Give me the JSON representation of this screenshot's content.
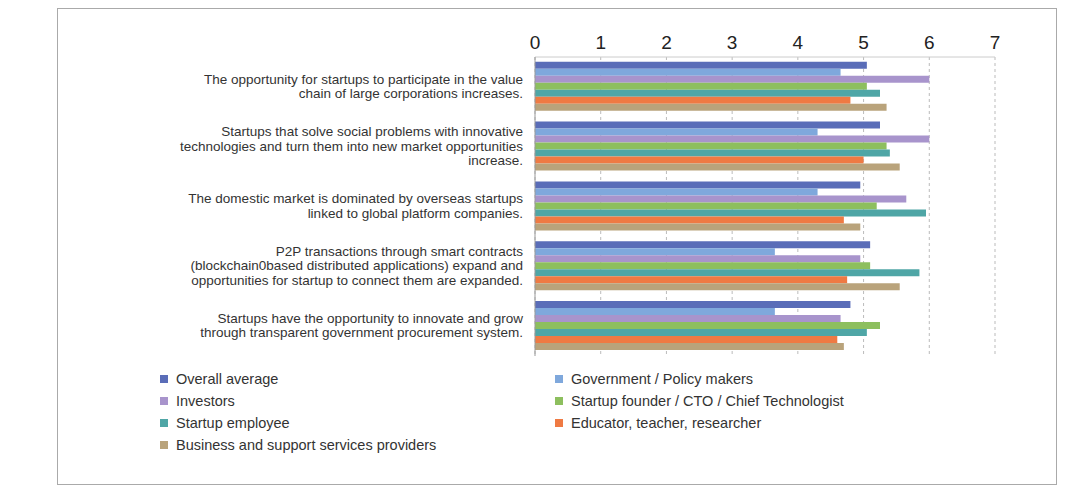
{
  "chart_data": {
    "type": "bar",
    "orientation": "horizontal",
    "categories": [
      "The opportunity for startups to participate in the value chain of large corporations increases.",
      "Startups that solve social problems with innovative technologies and turn them into new market opportunities increase.",
      "The domestic market is dominated by overseas startups linked to global platform companies.",
      "P2P transactions through smart contracts (blockchain0based distributed applications) expand and opportunities for startup to connect them are expanded.",
      "Startups have the opportunity to innovate and grow through transparent government procurement system."
    ],
    "series": [
      {
        "name": "Overall average",
        "color": "#5a6db8",
        "values": [
          5.05,
          5.25,
          4.95,
          5.1,
          4.8
        ]
      },
      {
        "name": "Government / Policy makers",
        "color": "#7fa8dc",
        "values": [
          4.65,
          4.3,
          4.3,
          3.65,
          3.65
        ]
      },
      {
        "name": "Investors",
        "color": "#a894cc",
        "values": [
          6.0,
          6.0,
          5.65,
          4.95,
          4.65
        ]
      },
      {
        "name": "Startup founder / CTO / Chief Technologist",
        "color": "#8dbf5e",
        "values": [
          5.05,
          5.35,
          5.2,
          5.1,
          5.25
        ]
      },
      {
        "name": "Startup employee",
        "color": "#4fa6a6",
        "values": [
          5.25,
          5.4,
          5.95,
          5.85,
          5.05
        ]
      },
      {
        "name": "Educator, teacher, researcher",
        "color": "#ef7a43",
        "values": [
          4.8,
          5.0,
          4.7,
          4.75,
          4.6
        ]
      },
      {
        "name": "Business and support services providers",
        "color": "#b9a37b",
        "values": [
          5.35,
          5.55,
          4.95,
          5.55,
          4.7
        ]
      }
    ],
    "xlim": [
      0,
      7
    ],
    "xticks": [
      0,
      1,
      2,
      3,
      4,
      5,
      6,
      7
    ],
    "grid": true,
    "legend": "bottom"
  }
}
